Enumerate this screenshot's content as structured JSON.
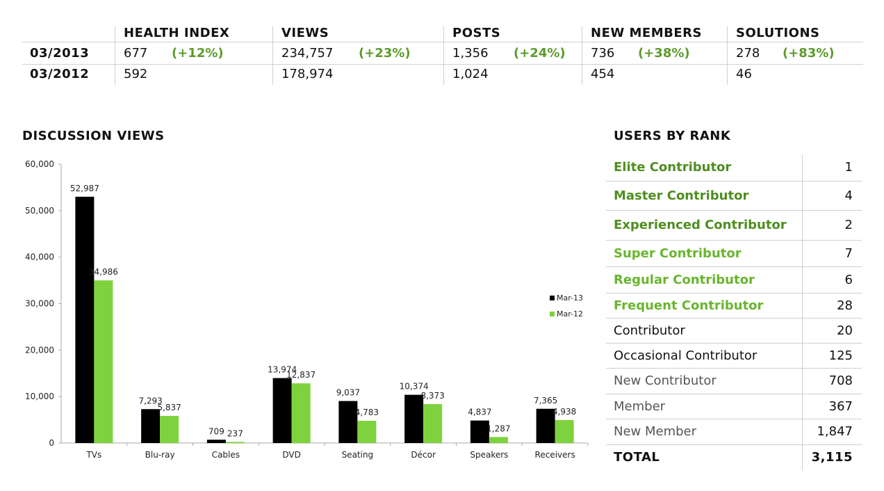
{
  "stats": {
    "headers": [
      "HEALTH INDEX",
      "VIEWS",
      "POSTS",
      "NEW MEMBERS",
      "SOLUTIONS"
    ],
    "rows": [
      {
        "label": "03/2013",
        "cells": [
          {
            "value": "677",
            "change": "(+12%)"
          },
          {
            "value": "234,757",
            "change": "(+23%)"
          },
          {
            "value": "1,356",
            "change": "(+24%)"
          },
          {
            "value": "736",
            "change": "(+38%)"
          },
          {
            "value": "278",
            "change": "(+83%)"
          }
        ]
      },
      {
        "label": "03/2012",
        "cells": [
          {
            "value": "592",
            "change": ""
          },
          {
            "value": "178,974",
            "change": ""
          },
          {
            "value": "1,024",
            "change": ""
          },
          {
            "value": "454",
            "change": ""
          },
          {
            "value": "46",
            "change": ""
          }
        ]
      }
    ]
  },
  "discussion_views": {
    "title": "DISCUSSION VIEWS"
  },
  "chart_data": {
    "type": "bar",
    "title": "DISCUSSION VIEWS",
    "xlabel": "",
    "ylabel": "",
    "categories": [
      "TVs",
      "Blu-ray",
      "Cables",
      "DVD",
      "Seating",
      "Décor",
      "Speakers",
      "Receivers"
    ],
    "series": [
      {
        "name": "Mar-13",
        "color": "#000000",
        "values": [
          52987,
          7293,
          709,
          13974,
          9037,
          10374,
          4837,
          7365
        ],
        "labels": [
          "52,987",
          "7,293",
          "709",
          "13,974",
          "9,037",
          "10,374",
          "4,837",
          "7,365"
        ]
      },
      {
        "name": "Mar-12",
        "color": "#7ed23e",
        "values": [
          34986,
          5837,
          237,
          12837,
          4783,
          8373,
          1287,
          4938
        ],
        "labels": [
          "34,986",
          "5,837",
          "237",
          "12,837",
          "4,783",
          "8,373",
          "1,287",
          "4,938"
        ]
      }
    ],
    "ylim": [
      0,
      60000
    ],
    "yticks": [
      0,
      10000,
      20000,
      30000,
      40000,
      50000,
      60000
    ],
    "ytick_labels": [
      "0",
      "10,000",
      "20,000",
      "30,000",
      "40,000",
      "50,000",
      "60,000"
    ],
    "grid": false,
    "legend": "right"
  },
  "users_by_rank": {
    "title": "USERS BY RANK",
    "rows": [
      {
        "name": "Elite Contributor",
        "count": "1",
        "style": "g1"
      },
      {
        "name": "Master Contributor",
        "count": "4",
        "style": "g1"
      },
      {
        "name": "Experienced Contributor",
        "count": "2",
        "style": "g1"
      },
      {
        "name": "Super Contributor",
        "count": "7",
        "style": "g2"
      },
      {
        "name": "Regular Contributor",
        "count": "6",
        "style": "g2"
      },
      {
        "name": "Frequent Contributor",
        "count": "28",
        "style": "g2"
      },
      {
        "name": "Contributor",
        "count": "20",
        "style": "dk"
      },
      {
        "name": "Occasional Contributor",
        "count": "125",
        "style": "dk"
      },
      {
        "name": "New Contributor",
        "count": "708",
        "style": "gy"
      },
      {
        "name": "Member",
        "count": "367",
        "style": "gy"
      },
      {
        "name": "New Member",
        "count": "1,847",
        "style": "gy"
      }
    ],
    "total": {
      "name": "TOTAL",
      "count": "3,115"
    }
  }
}
